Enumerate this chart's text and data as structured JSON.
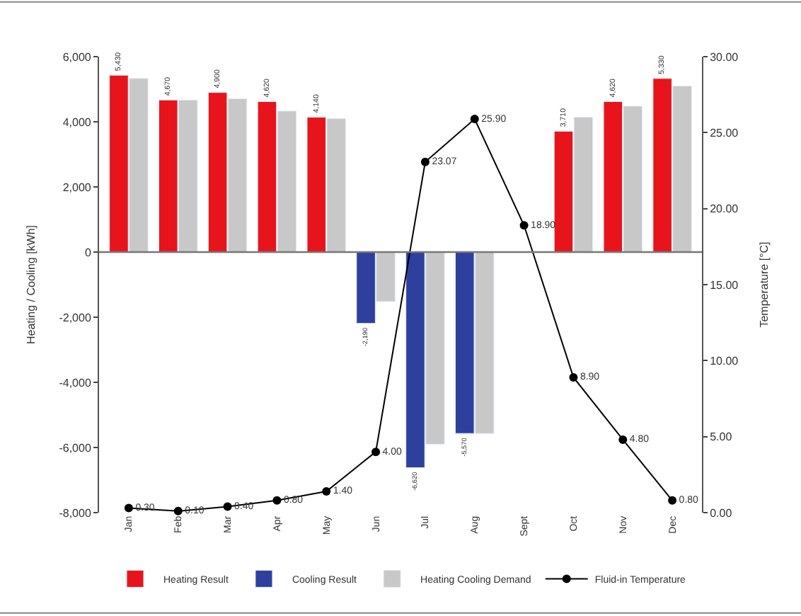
{
  "chart_data": {
    "type": "bar",
    "categories": [
      "Jan",
      "Feb",
      "Mar",
      "Apr",
      "May",
      "Jun",
      "Jul",
      "Aug",
      "Sept",
      "Oct",
      "Nov",
      "Dec"
    ],
    "ylabel": "Heating / Cooling [kWh]",
    "y2label": "Temperature [°C]",
    "series": [
      {
        "name": "Heating Result",
        "color": "#e8141c",
        "values": [
          5430,
          4670,
          4900,
          4620,
          4140,
          null,
          null,
          null,
          null,
          3710,
          4620,
          5330
        ],
        "value_labels": [
          "5,430",
          "4,670",
          "4,900",
          "4,620",
          "4,140",
          null,
          null,
          null,
          null,
          "3,710",
          "4,620",
          "5,330"
        ]
      },
      {
        "name": "Cooling Result",
        "color": "#2e3f9e",
        "values": [
          null,
          null,
          null,
          null,
          null,
          -2190,
          -6620,
          -5570,
          null,
          null,
          null,
          null
        ],
        "value_labels": [
          null,
          null,
          null,
          null,
          null,
          "-2,190",
          "-6,620",
          "-5,570",
          null,
          null,
          null,
          null
        ]
      },
      {
        "name": "Heating Cooling Demand",
        "color": "#c8c8c8",
        "values": [
          5330,
          4670,
          4710,
          4330,
          4100,
          -1520,
          -5900,
          -5570,
          null,
          4140,
          4480,
          5100
        ]
      },
      {
        "name": "Fluid-in Temperature",
        "color": "#000000",
        "type": "line",
        "axis": "y2",
        "marker": "circle",
        "values": [
          0.3,
          0.1,
          0.4,
          0.8,
          1.4,
          4.0,
          23.07,
          25.9,
          18.9,
          8.9,
          4.8,
          0.8
        ],
        "value_labels": [
          "0.30",
          "0.10",
          "0.40",
          "0.80",
          "1.40",
          "4.00",
          "23.07",
          "25.90",
          "18.90",
          "8.90",
          "4.80",
          "0.80"
        ]
      }
    ],
    "ylim": [
      -8000,
      6000
    ],
    "yticks": [
      {
        "value": -8000,
        "label": "-8,000"
      },
      {
        "value": -6000,
        "label": "-6,000"
      },
      {
        "value": -4000,
        "label": "-4,000"
      },
      {
        "value": -2000,
        "label": "-2,000"
      },
      0,
      {
        "value": 2000,
        "label": "2,000"
      },
      {
        "value": 4000,
        "label": "4,000"
      },
      {
        "value": 6000,
        "label": "6,000"
      }
    ],
    "y2lim": [
      0,
      30
    ],
    "y2ticks": [
      {
        "value": 0,
        "label": "0.00"
      },
      {
        "value": 5,
        "label": "5.00"
      },
      {
        "value": 10,
        "label": "10.00"
      },
      {
        "value": 15,
        "label": "15.00"
      },
      {
        "value": 20,
        "label": "20.00"
      },
      {
        "value": 25,
        "label": "25.00"
      },
      {
        "value": 30,
        "label": "30.00"
      }
    ],
    "ref_lines": [
      {
        "axis": "y",
        "value": 0,
        "color": "#777777"
      }
    ],
    "legend": "bottom"
  }
}
